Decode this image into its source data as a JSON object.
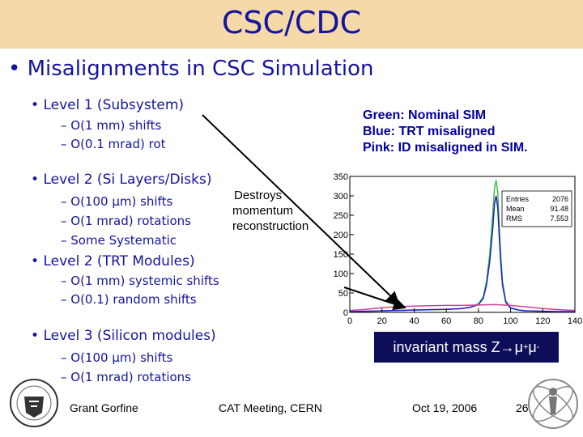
{
  "title": "CSC/CDC",
  "main_bullet": "Misalignments in CSC Simulation",
  "level1": {
    "label": "Level 1 (Subsystem)",
    "items": [
      "– O(1 mm) shifts",
      "– O(0.1 mrad) rot"
    ]
  },
  "level2": {
    "label": "Level 2 (Si Layers/Disks)",
    "items": [
      "– O(100 μm) shifts",
      "– O(1 mrad) rotations",
      "– Some Systematic"
    ]
  },
  "destroys": [
    "Destroys",
    "momentum",
    "reconstruction"
  ],
  "level2trt": {
    "label": "Level 2 (TRT Modules)",
    "items": [
      "– O(1 mm) systemic shifts",
      "– O(0.1) random shifts"
    ]
  },
  "level3": {
    "label": "Level 3 (Silicon modules)",
    "items": [
      "– O(100 μm) shifts",
      "– O(1 mrad) rotations"
    ]
  },
  "legend_note": [
    "Green: Nominal SIM",
    "Blue: TRT misaligned",
    "Pink: ID misaligned in SIM."
  ],
  "invariant": {
    "text": "invariant mass Z→μ",
    "sup": "+",
    "mu": "μ",
    "sup2": "-"
  },
  "footer": {
    "author": "Grant Gorfine",
    "meeting": "CAT Meeting, CERN",
    "date": "Oct 19, 2006",
    "page": "26"
  },
  "stats": {
    "entries_label": "Entries",
    "entries": "2076",
    "mean_label": "Mean",
    "mean": "91.48",
    "rms_label": "RMS",
    "rms": "7.553"
  },
  "colors": {
    "green": "#3fbf3f",
    "blue": "#2020d0",
    "pink": "#d040a0",
    "title_bg": "#f5d9a8"
  },
  "chart_data": {
    "type": "line",
    "xlim": [
      0,
      140
    ],
    "ylim": [
      0,
      350
    ],
    "x_ticks": [
      "0",
      "20",
      "40",
      "60",
      "80",
      "100",
      "120",
      "140"
    ],
    "y_ticks": [
      "0",
      "50",
      "100",
      "150",
      "200",
      "250",
      "300",
      "350"
    ],
    "series": [
      {
        "name": "Green: Nominal SIM",
        "color": "#3fbf3f",
        "x": [
          0,
          10,
          20,
          30,
          40,
          50,
          60,
          70,
          75,
          80,
          83,
          85,
          87,
          89,
          90,
          91,
          92,
          93,
          94,
          95,
          97,
          100,
          105,
          110,
          120,
          130,
          140
        ],
        "y": [
          2,
          3,
          4,
          5,
          6,
          7,
          8,
          10,
          14,
          22,
          40,
          80,
          150,
          260,
          320,
          340,
          310,
          220,
          140,
          80,
          30,
          12,
          6,
          4,
          3,
          2,
          2
        ]
      },
      {
        "name": "Blue: TRT misaligned",
        "color": "#2020d0",
        "x": [
          0,
          10,
          20,
          30,
          40,
          50,
          60,
          70,
          75,
          80,
          83,
          85,
          87,
          89,
          90,
          91,
          92,
          93,
          94,
          95,
          97,
          100,
          105,
          110,
          120,
          130,
          140
        ],
        "y": [
          2,
          3,
          4,
          5,
          6,
          7,
          8,
          10,
          13,
          20,
          36,
          70,
          130,
          220,
          280,
          300,
          270,
          190,
          120,
          70,
          26,
          11,
          6,
          4,
          3,
          2,
          2
        ]
      },
      {
        "name": "Pink: ID misaligned in SIM.",
        "color": "#d040a0",
        "x": [
          0,
          10,
          20,
          30,
          40,
          50,
          60,
          70,
          80,
          90,
          100,
          110,
          120,
          130,
          140
        ],
        "y": [
          5,
          8,
          12,
          15,
          16,
          17,
          18,
          18,
          19,
          20,
          18,
          14,
          10,
          7,
          5
        ]
      }
    ]
  }
}
